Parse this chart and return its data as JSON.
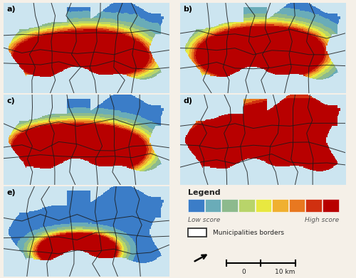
{
  "background_color": "#f5f0e8",
  "water_color": "#cce5f0",
  "legend_colors": [
    "#3b7dc8",
    "#6aacb8",
    "#8dba8d",
    "#b8d46a",
    "#e8e840",
    "#f0b030",
    "#e87820",
    "#d03010",
    "#b80000"
  ],
  "border_color": "#1a1a2e",
  "legend_title": "Legend",
  "legend_low": "Low score",
  "legend_high": "High score",
  "legend_muni": "Municipalities borders",
  "scale_label": "10 km",
  "panel_labels": [
    "a)",
    "b)",
    "c)",
    "d)",
    "e)"
  ],
  "title_fontsize": 8,
  "legend_fontsize": 7
}
